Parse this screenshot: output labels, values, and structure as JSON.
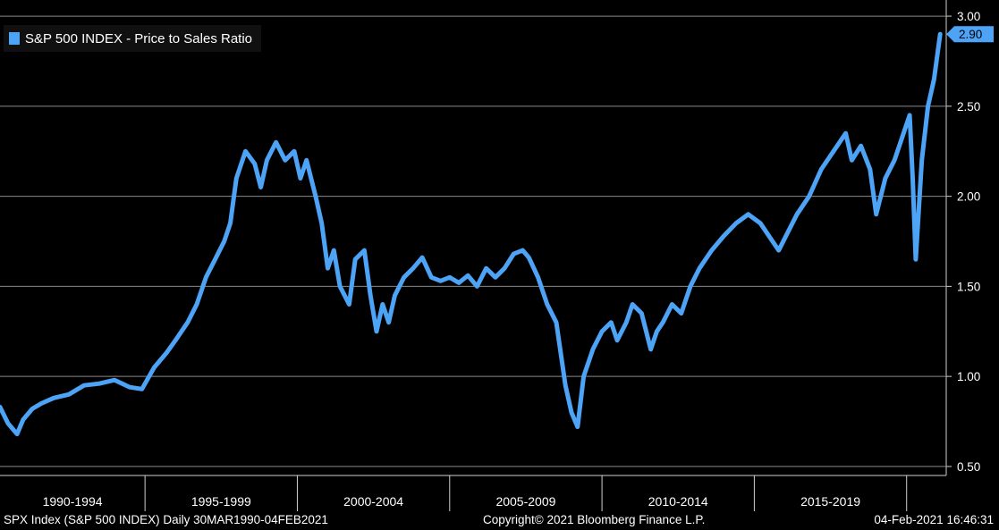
{
  "colors": {
    "series": "#4da3f5",
    "background": "#000000",
    "grid": "#8a8a8a"
  },
  "chart_data": {
    "type": "line",
    "legend": {
      "placement": "top-left",
      "label": "S&P 500 INDEX - Price to Sales Ratio"
    },
    "ylim": [
      0.45,
      3.05
    ],
    "yticks": [
      {
        "value": 3.0,
        "label": "3.00"
      },
      {
        "value": 2.5,
        "label": "2.50"
      },
      {
        "value": 2.0,
        "label": "2.00"
      },
      {
        "value": 1.5,
        "label": "1.50"
      },
      {
        "value": 1.0,
        "label": "1.00"
      },
      {
        "value": 0.5,
        "label": "0.50"
      }
    ],
    "xlim": [
      1990.24,
      2021.3
    ],
    "x_groups": [
      {
        "label": "1990-1994",
        "start": 1990,
        "end": 1995
      },
      {
        "label": "1995-1999",
        "start": 1995,
        "end": 2000
      },
      {
        "label": "2000-2004",
        "start": 2000,
        "end": 2005
      },
      {
        "label": "2005-2009",
        "start": 2005,
        "end": 2010
      },
      {
        "label": "2010-2014",
        "start": 2010,
        "end": 2015
      },
      {
        "label": "2015-2019",
        "start": 2015,
        "end": 2020
      }
    ],
    "last_value": {
      "value": 2.9,
      "label": "2.90"
    },
    "grid": true,
    "series": [
      {
        "x": [
          1990.24,
          1990.5,
          1990.8,
          1991.0,
          1991.3,
          1991.6,
          1992.0,
          1992.5,
          1993.0,
          1993.5,
          1994.0,
          1994.5,
          1994.9,
          1995.3,
          1995.7,
          1996.0,
          1996.4,
          1996.7,
          1997.0,
          1997.3,
          1997.6,
          1997.8,
          1998.0,
          1998.3,
          1998.6,
          1998.8,
          1999.0,
          1999.3,
          1999.6,
          1999.9,
          2000.1,
          2000.3,
          2000.6,
          2000.8,
          2001.0,
          2001.2,
          2001.4,
          2001.7,
          2001.9,
          2002.2,
          2002.4,
          2002.6,
          2002.8,
          2003.0,
          2003.2,
          2003.5,
          2003.8,
          2004.1,
          2004.4,
          2004.7,
          2005.0,
          2005.3,
          2005.6,
          2005.9,
          2006.2,
          2006.5,
          2006.8,
          2007.1,
          2007.4,
          2007.6,
          2007.9,
          2008.2,
          2008.5,
          2008.8,
          2009.0,
          2009.2,
          2009.4,
          2009.7,
          2010.0,
          2010.3,
          2010.5,
          2010.8,
          2011.0,
          2011.3,
          2011.6,
          2011.8,
          2012.0,
          2012.3,
          2012.6,
          2012.9,
          2013.2,
          2013.6,
          2014.0,
          2014.4,
          2014.8,
          2015.2,
          2015.6,
          2015.8,
          2016.1,
          2016.4,
          2016.8,
          2017.2,
          2017.6,
          2018.0,
          2018.2,
          2018.5,
          2018.8,
          2019.0,
          2019.3,
          2019.6,
          2019.9,
          2020.1,
          2020.2,
          2020.3,
          2020.5,
          2020.7,
          2020.9,
          2021.1
        ],
        "y": [
          0.83,
          0.74,
          0.68,
          0.76,
          0.82,
          0.85,
          0.88,
          0.9,
          0.95,
          0.96,
          0.98,
          0.94,
          0.93,
          1.05,
          1.13,
          1.2,
          1.3,
          1.4,
          1.55,
          1.65,
          1.75,
          1.85,
          2.1,
          2.25,
          2.18,
          2.05,
          2.2,
          2.3,
          2.2,
          2.25,
          2.1,
          2.2,
          2.0,
          1.85,
          1.6,
          1.7,
          1.5,
          1.4,
          1.65,
          1.7,
          1.45,
          1.25,
          1.4,
          1.3,
          1.45,
          1.55,
          1.6,
          1.66,
          1.55,
          1.53,
          1.55,
          1.52,
          1.56,
          1.5,
          1.6,
          1.55,
          1.6,
          1.68,
          1.7,
          1.66,
          1.55,
          1.4,
          1.3,
          0.95,
          0.8,
          0.72,
          1.0,
          1.15,
          1.25,
          1.3,
          1.2,
          1.3,
          1.4,
          1.35,
          1.15,
          1.25,
          1.3,
          1.4,
          1.35,
          1.5,
          1.6,
          1.7,
          1.78,
          1.85,
          1.9,
          1.85,
          1.75,
          1.7,
          1.8,
          1.9,
          2.0,
          2.15,
          2.25,
          2.35,
          2.2,
          2.28,
          2.15,
          1.9,
          2.1,
          2.2,
          2.35,
          2.45,
          2.1,
          1.65,
          2.2,
          2.5,
          2.65,
          2.9
        ]
      }
    ]
  },
  "footer": {
    "left": "SPX Index (S&P 500 INDEX)  Daily 30MAR1990-04FEB2021",
    "center": "Copyright© 2021 Bloomberg Finance L.P.",
    "right": "04-Feb-2021 16:46:31"
  }
}
